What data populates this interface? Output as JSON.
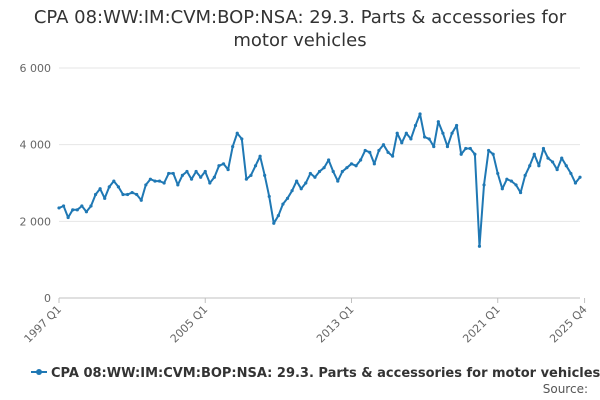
{
  "chart_data": {
    "type": "line",
    "title": "CPA 08:WW:IM:CVM:BOP:NSA: 29.3. Parts & accessories for motor vehicles",
    "title_lines": [
      "CPA 08:WW:IM:CVM:BOP:NSA: 29.3. Parts & accessories for",
      "motor vehicles"
    ],
    "xlabel": "",
    "ylabel": "",
    "ylim": [
      0,
      6000
    ],
    "yticks": [
      0,
      2000,
      4000,
      6000
    ],
    "ytick_labels": [
      "0",
      "2 000",
      "4 000",
      "6 000"
    ],
    "xticks": [
      {
        "label": "1997 Q1",
        "index": 0
      },
      {
        "label": "2005 Q1",
        "index": 32
      },
      {
        "label": "2013 Q1",
        "index": 64
      },
      {
        "label": "2021 Q1",
        "index": 96
      },
      {
        "label": "2025 Q4",
        "index": 115
      }
    ],
    "grid": true,
    "legend_position": "bottom",
    "source_label": "Source:",
    "color": "#1f78b4",
    "series": [
      {
        "name": "CPA 08:WW:IM:CVM:BOP:NSA: 29.3. Parts & accessories for motor vehicles",
        "values": [
          2350,
          2400,
          2100,
          2300,
          2300,
          2400,
          2250,
          2400,
          2700,
          2850,
          2600,
          2900,
          3050,
          2900,
          2700,
          2700,
          2750,
          2700,
          2550,
          2950,
          3100,
          3050,
          3050,
          3000,
          3250,
          3250,
          2950,
          3200,
          3300,
          3100,
          3300,
          3150,
          3300,
          3000,
          3150,
          3450,
          3500,
          3350,
          3950,
          4300,
          4150,
          3100,
          3200,
          3450,
          3700,
          3200,
          2650,
          1950,
          2150,
          2450,
          2600,
          2800,
          3050,
          2850,
          3000,
          3250,
          3150,
          3300,
          3400,
          3600,
          3300,
          3050,
          3300,
          3400,
          3500,
          3450,
          3600,
          3850,
          3800,
          3500,
          3850,
          4000,
          3800,
          3700,
          4300,
          4050,
          4300,
          4150,
          4500,
          4800,
          4200,
          4150,
          3950,
          4600,
          4300,
          3950,
          4300,
          4500,
          3750,
          3900,
          3900,
          3750,
          1350,
          2950,
          3850,
          3750,
          3250,
          2850,
          3100,
          3050,
          2950,
          2750,
          3200,
          3450,
          3750,
          3450,
          3900,
          3650,
          3550,
          3350,
          3650,
          3450,
          3250,
          3000,
          3150
        ]
      }
    ]
  }
}
